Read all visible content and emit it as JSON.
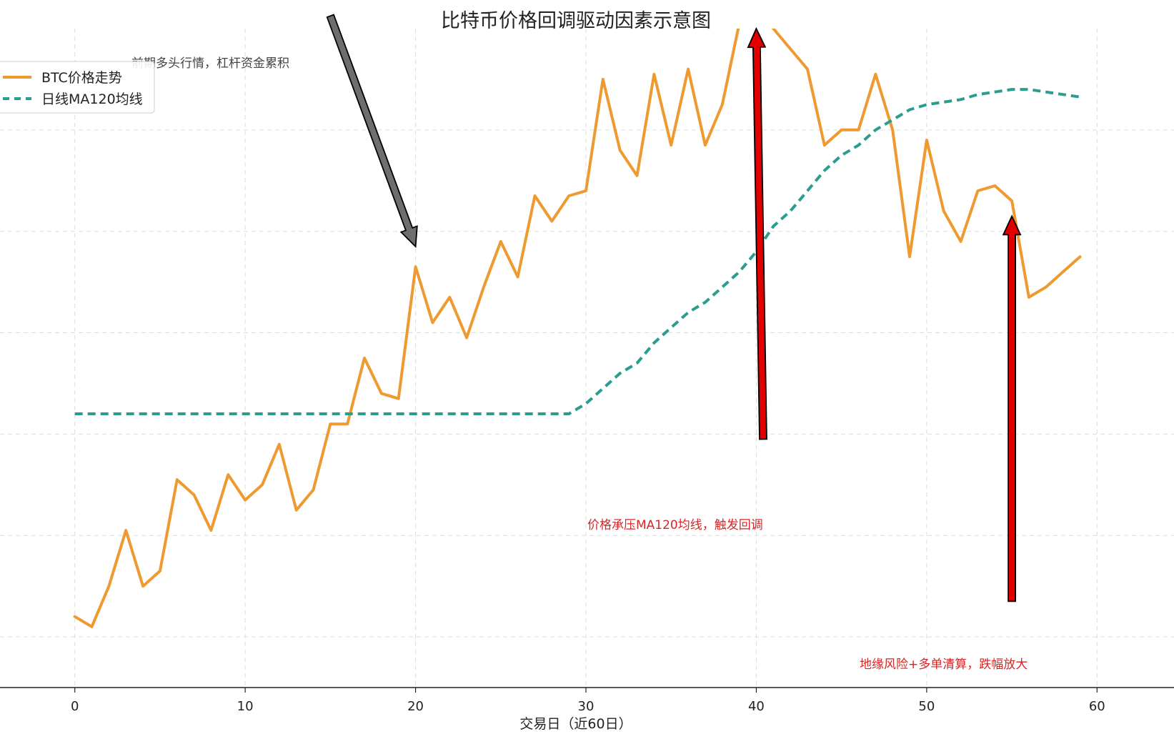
{
  "chart_data": {
    "type": "line",
    "title": "比特币价格回调驱动因素示意图",
    "xlabel": "交易日（近60日）",
    "ylabel": "",
    "xlim": [
      -2,
      62
    ],
    "ylim": [
      -1,
      12
    ],
    "x_ticks": [
      0,
      10,
      20,
      30,
      40,
      50,
      60
    ],
    "y_gridlines": [
      0,
      2,
      4,
      6,
      8,
      10
    ],
    "y_tick_labels_visible": false,
    "grid": true,
    "legend_position": "upper-left",
    "colors": {
      "btc": "#EE9A30",
      "ma": "#2A9D8F",
      "red_arrow": "#E00000",
      "gray_arrow": "#6E6E6E",
      "red_text": "#D62728",
      "gray_text": "#444444"
    },
    "series": [
      {
        "name": "BTC价格走势",
        "style": "solid",
        "x": [
          0,
          1,
          2,
          3,
          4,
          5,
          6,
          7,
          8,
          9,
          10,
          11,
          12,
          13,
          14,
          15,
          16,
          17,
          18,
          19,
          20,
          21,
          22,
          23,
          24,
          25,
          26,
          27,
          28,
          29,
          30,
          31,
          32,
          33,
          34,
          35,
          36,
          37,
          38,
          39,
          40,
          41,
          42,
          43,
          44,
          45,
          46,
          47,
          48,
          49,
          50,
          51,
          52,
          53,
          54,
          55,
          56,
          57,
          58,
          59
        ],
        "values": [
          0.4,
          0.2,
          1.0,
          2.1,
          1.0,
          1.3,
          3.1,
          2.8,
          2.1,
          3.2,
          2.7,
          3.0,
          3.8,
          2.5,
          2.9,
          4.2,
          4.2,
          5.5,
          4.8,
          4.7,
          7.3,
          6.2,
          6.7,
          5.9,
          6.9,
          7.8,
          7.1,
          8.7,
          8.2,
          8.7,
          8.8,
          11.0,
          9.6,
          9.1,
          11.1,
          9.7,
          11.2,
          9.7,
          10.5,
          12.1,
          12.5,
          12.0,
          11.6,
          11.2,
          9.7,
          10.0,
          10.0,
          11.1,
          10.0,
          7.5,
          9.8,
          8.4,
          7.8,
          8.8,
          8.9,
          8.6,
          6.7,
          6.9,
          7.2,
          7.5
        ],
        "display_clip_top": 12.5
      },
      {
        "name": "日线MA120均线",
        "style": "dashed",
        "x": [
          0,
          29,
          30,
          31,
          32,
          33,
          34,
          35,
          36,
          37,
          38,
          39,
          40,
          41,
          42,
          43,
          44,
          45,
          46,
          47,
          48,
          49,
          50,
          51,
          52,
          53,
          54,
          55,
          56,
          57,
          58,
          59
        ],
        "values": [
          4.4,
          4.4,
          4.6,
          4.9,
          5.2,
          5.4,
          5.8,
          6.1,
          6.4,
          6.6,
          6.9,
          7.2,
          7.6,
          8.1,
          8.4,
          8.8,
          9.2,
          9.5,
          9.7,
          10.0,
          10.2,
          10.4,
          10.5,
          10.55,
          10.6,
          10.7,
          10.75,
          10.8,
          10.8,
          10.75,
          10.7,
          10.65
        ]
      }
    ],
    "annotations": [
      {
        "text": "前期多头行情，杠杆资金累积",
        "color": "gray",
        "arrow_from": [
          15,
          12.25
        ],
        "arrow_to": [
          20,
          7.7
        ]
      },
      {
        "text": "价格承压MA120均线，触发回调",
        "color": "red",
        "arrow_from": [
          40.4,
          3.9
        ],
        "arrow_to": [
          40,
          12.0
        ]
      },
      {
        "text": "地缘风险+多单清算，跌幅放大",
        "color": "red",
        "arrow_from": [
          55,
          0.7
        ],
        "arrow_to": [
          55,
          8.3
        ]
      }
    ],
    "legend": [
      "BTC价格走势",
      "日线MA120均线"
    ]
  }
}
